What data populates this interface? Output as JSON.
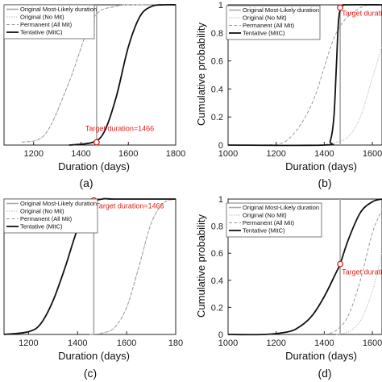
{
  "colors": {
    "most_likely_line": "#a9a9a9",
    "no_mit": "#bdbdbd",
    "all_mit": "#9a9a9a",
    "mitc": "#111111",
    "target_marker": "#e0201a"
  },
  "chart_data": [
    {
      "type": "line",
      "caption": "(a)",
      "xlabel": "Duration (days)",
      "ylabel": "",
      "xlim": [
        1075,
        1800
      ],
      "ylim": [
        0,
        1
      ],
      "xticks": [
        "1200",
        "1400",
        "1600",
        "1800"
      ],
      "yticks": [],
      "grid": false,
      "legend": "top-left",
      "annotation": "Target duration=1466",
      "target": {
        "x": 1466,
        "y": 0.02
      },
      "vline_x": 1466,
      "series": [
        {
          "name": "Original Most-Likely duration",
          "kind": "vline"
        },
        {
          "name": "Original (No Mit)",
          "kind": "cdf",
          "x": [
            1150,
            1250,
            1350,
            1450,
            1550,
            1650,
            1750
          ],
          "y": [
            0.02,
            0.08,
            0.45,
            0.9,
            0.99,
            1.0,
            1.0
          ]
        },
        {
          "name": "Permanent (All Mit)",
          "kind": "cdf",
          "x": [
            1150,
            1250,
            1350,
            1450,
            1550,
            1650,
            1750
          ],
          "y": [
            0.02,
            0.08,
            0.45,
            0.9,
            0.99,
            1.0,
            1.0
          ]
        },
        {
          "name": "Tentative (MitC)",
          "kind": "cdf",
          "x": [
            1350,
            1450,
            1500,
            1550,
            1600,
            1650,
            1700,
            1750,
            1800
          ],
          "y": [
            0.0,
            0.02,
            0.1,
            0.35,
            0.7,
            0.92,
            0.99,
            1.0,
            1.0
          ]
        }
      ]
    },
    {
      "type": "line",
      "caption": "(b)",
      "xlabel": "Duration (days)",
      "ylabel": "Cumulative probability",
      "xlim": [
        1000,
        1640
      ],
      "ylim": [
        0,
        1
      ],
      "xticks": [
        "1000",
        "1200",
        "1400",
        "1600"
      ],
      "yticks": [
        "0",
        "0.2",
        "0.4",
        "0.6",
        "0.8",
        "1"
      ],
      "grid": false,
      "legend": "top-right",
      "annotation": "Target duration",
      "target": {
        "x": 1466,
        "y": 0.98
      },
      "vline_x": 1466,
      "series": [
        {
          "name": "Original Most-Likely duration",
          "kind": "vline"
        },
        {
          "name": "Original (No Mit)",
          "kind": "cdf",
          "x": [
            1380,
            1450,
            1500,
            1550,
            1600,
            1640
          ],
          "y": [
            0.0,
            0.02,
            0.06,
            0.2,
            0.48,
            0.7
          ]
        },
        {
          "name": "Permanent (All Mit)",
          "kind": "cdf",
          "x": [
            1150,
            1250,
            1350,
            1450,
            1550,
            1640
          ],
          "y": [
            0.0,
            0.04,
            0.3,
            0.8,
            0.98,
            1.0
          ]
        },
        {
          "name": "Tentative (MitC)",
          "kind": "cdf",
          "x": [
            1000,
            1400,
            1425,
            1440,
            1450,
            1460,
            1475,
            1500,
            1640
          ],
          "y": [
            0.0,
            0.0,
            0.03,
            0.2,
            0.55,
            0.9,
            0.99,
            1.0,
            1.0
          ]
        }
      ]
    },
    {
      "type": "line",
      "caption": "(c)",
      "xlabel": "Duration (days)",
      "ylabel": "",
      "xlim": [
        1100,
        1800
      ],
      "ylim": [
        0,
        1
      ],
      "xticks": [
        "1200",
        "1400",
        "1600",
        "180"
      ],
      "yticks": [],
      "grid": false,
      "legend": "top-left",
      "annotation": "Target duration=1466",
      "target": {
        "x": 1466,
        "y": 0.99
      },
      "vline_x": 1466,
      "series": [
        {
          "name": "Original Most-Likely duration",
          "kind": "vline"
        },
        {
          "name": "Original (No Mit)",
          "kind": "cdf",
          "x": [
            1450,
            1500,
            1550,
            1600,
            1650,
            1700,
            1750,
            1800
          ],
          "y": [
            0.0,
            0.01,
            0.05,
            0.2,
            0.5,
            0.82,
            0.97,
            1.0
          ]
        },
        {
          "name": "Permanent (All Mit)",
          "kind": "cdf",
          "x": [
            1450,
            1500,
            1550,
            1600,
            1650,
            1700,
            1750,
            1800
          ],
          "y": [
            0.0,
            0.01,
            0.05,
            0.2,
            0.5,
            0.82,
            0.97,
            1.0
          ]
        },
        {
          "name": "Tentative (MitC)",
          "kind": "cdf",
          "x": [
            1100,
            1200,
            1250,
            1300,
            1350,
            1400,
            1450,
            1500,
            1550,
            1800
          ],
          "y": [
            0.0,
            0.02,
            0.08,
            0.25,
            0.5,
            0.78,
            0.96,
            1.0,
            1.0,
            1.0
          ]
        }
      ]
    },
    {
      "type": "line",
      "caption": "(d)",
      "xlabel": "Duration (days)",
      "ylabel": "Cumulative probability",
      "xlim": [
        1000,
        1640
      ],
      "ylim": [
        0,
        1
      ],
      "xticks": [
        "1000",
        "1200",
        "1400",
        "1600"
      ],
      "yticks": [
        "0",
        "0.2",
        "0.4",
        "0.6",
        "0.8",
        "1"
      ],
      "grid": false,
      "legend": "top-right",
      "annotation": "Target duratio",
      "target": {
        "x": 1466,
        "y": 0.52
      },
      "vline_x": 1466,
      "series": [
        {
          "name": "Original Most-Likely duration",
          "kind": "vline"
        },
        {
          "name": "Original (No Mit)",
          "kind": "cdf",
          "x": [
            1450,
            1500,
            1550,
            1600,
            1640
          ],
          "y": [
            0.0,
            0.02,
            0.1,
            0.32,
            0.6
          ]
        },
        {
          "name": "Permanent (All Mit)",
          "kind": "cdf",
          "x": [
            1400,
            1450,
            1500,
            1550,
            1600,
            1640
          ],
          "y": [
            0.0,
            0.03,
            0.14,
            0.4,
            0.75,
            0.92
          ]
        },
        {
          "name": "Tentative (MitC)",
          "kind": "cdf",
          "x": [
            1000,
            1150,
            1250,
            1300,
            1350,
            1400,
            1450,
            1466,
            1500,
            1550,
            1600,
            1640
          ],
          "y": [
            0.0,
            0.0,
            0.02,
            0.06,
            0.14,
            0.28,
            0.46,
            0.52,
            0.7,
            0.9,
            0.98,
            1.0
          ]
        }
      ]
    }
  ]
}
